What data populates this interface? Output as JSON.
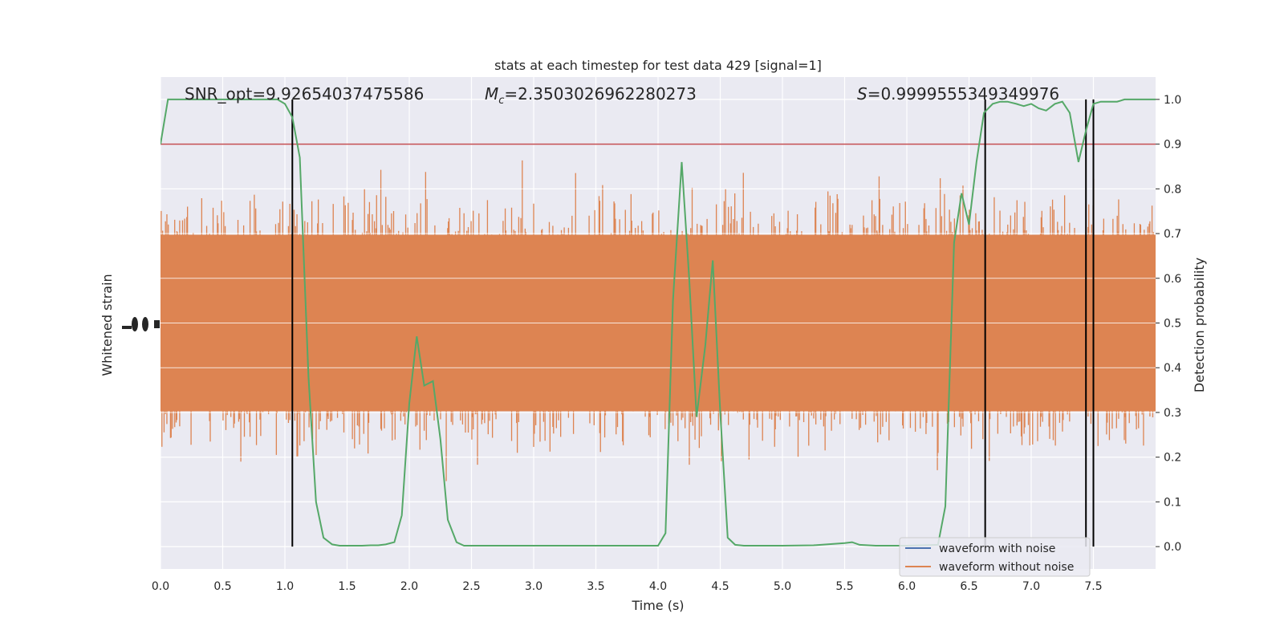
{
  "chart_data": {
    "type": "line",
    "title": "stats at each timestep for test data 429 [signal=1]",
    "xlabel": "Time (s)",
    "ylabel_left": "Whitened strain",
    "ylabel_right": "Detection probability",
    "xlim": [
      0.0,
      8.0
    ],
    "ylim_right": [
      -0.05,
      1.05
    ],
    "x_ticks": [
      "0.0",
      "0.5",
      "1.0",
      "1.5",
      "2.0",
      "2.5",
      "3.0",
      "3.5",
      "4.0",
      "4.5",
      "5.0",
      "5.5",
      "6.0",
      "6.5",
      "7.0",
      "7.5"
    ],
    "y_ticks_right": [
      "0.0",
      "0.1",
      "0.2",
      "0.3",
      "0.4",
      "0.5",
      "0.6",
      "0.7",
      "0.8",
      "0.9",
      "1.0"
    ],
    "grid": true,
    "legend_position": "lower-right",
    "annotations": {
      "snr": "SNR_opt=9.92654037475586",
      "mc_symbol": "M",
      "mc_sub": "c",
      "mc_value": "=2.3503026962280273",
      "s_symbol": "S",
      "s_value": "=0.9999555349349976"
    },
    "threshold": 0.9,
    "markers_x": [
      1.06,
      6.63,
      7.44,
      7.5
    ],
    "series": [
      {
        "name": "waveform with noise",
        "color": "#4c72b0"
      },
      {
        "name": "waveform without noise",
        "color": "#dd8452"
      }
    ],
    "probability": {
      "color": "#55a868",
      "x": [
        0.0,
        0.06,
        0.12,
        0.19,
        0.25,
        0.31,
        0.38,
        0.44,
        0.5,
        0.56,
        0.62,
        0.69,
        0.75,
        0.81,
        0.88,
        0.94,
        1.0,
        1.06,
        1.12,
        1.19,
        1.25,
        1.31,
        1.38,
        1.44,
        1.5,
        1.56,
        1.62,
        1.69,
        1.75,
        1.81,
        1.88,
        1.94,
        2.0,
        2.06,
        2.12,
        2.19,
        2.25,
        2.31,
        2.38,
        2.44,
        2.5,
        2.75,
        3.0,
        3.25,
        3.5,
        3.75,
        4.0,
        4.06,
        4.12,
        4.19,
        4.25,
        4.31,
        4.38,
        4.44,
        4.5,
        4.56,
        4.62,
        4.69,
        4.75,
        5.0,
        5.25,
        5.5,
        5.56,
        5.62,
        5.75,
        6.0,
        6.25,
        6.31,
        6.38,
        6.44,
        6.5,
        6.56,
        6.62,
        6.69,
        6.75,
        6.81,
        6.88,
        6.94,
        7.0,
        7.06,
        7.12,
        7.19,
        7.25,
        7.31,
        7.38,
        7.44,
        7.5,
        7.56,
        7.62,
        7.69,
        7.75,
        7.81,
        7.88,
        7.94,
        8.0
      ],
      "y": [
        0.9,
        1.0,
        1.0,
        1.0,
        1.0,
        1.0,
        1.0,
        1.0,
        1.0,
        1.0,
        1.0,
        1.0,
        1.0,
        1.0,
        1.0,
        1.0,
        0.99,
        0.96,
        0.87,
        0.38,
        0.1,
        0.02,
        0.005,
        0.002,
        0.002,
        0.002,
        0.002,
        0.003,
        0.003,
        0.005,
        0.01,
        0.07,
        0.32,
        0.47,
        0.36,
        0.37,
        0.24,
        0.06,
        0.01,
        0.002,
        0.002,
        0.002,
        0.002,
        0.002,
        0.002,
        0.002,
        0.002,
        0.03,
        0.55,
        0.86,
        0.6,
        0.29,
        0.45,
        0.64,
        0.3,
        0.02,
        0.004,
        0.002,
        0.002,
        0.002,
        0.003,
        0.008,
        0.01,
        0.004,
        0.002,
        0.002,
        0.004,
        0.09,
        0.68,
        0.79,
        0.72,
        0.86,
        0.97,
        0.99,
        0.995,
        0.995,
        0.99,
        0.985,
        0.99,
        0.98,
        0.975,
        0.99,
        0.995,
        0.97,
        0.86,
        0.93,
        0.99,
        0.995,
        0.995,
        0.995,
        1.0,
        1.0,
        1.0,
        1.0,
        1.0
      ]
    }
  }
}
